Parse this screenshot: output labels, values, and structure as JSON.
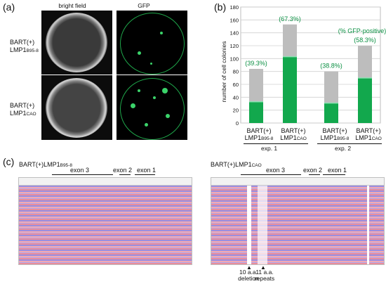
{
  "panel_a": {
    "label": "(a)",
    "columns": [
      "bright field",
      "GFP"
    ],
    "rows": [
      {
        "line1": "BART(+)",
        "line2_main": "LMP1",
        "line2_sub": "B95-8"
      },
      {
        "line1": "BART(+)",
        "line2_main": "LMP1",
        "line2_sub": "CAO"
      }
    ]
  },
  "panel_b": {
    "label": "(b)",
    "legend": "(% GFP-positive)",
    "colors": {
      "total": "#bdbdbd",
      "gfp": "#12a84d",
      "text": "#0a8f42"
    }
  },
  "chart_data": {
    "type": "bar",
    "ylabel": "number of cell colonies",
    "ylim": [
      0,
      180
    ],
    "yticks": [
      0,
      20,
      40,
      60,
      80,
      100,
      120,
      140,
      160,
      180
    ],
    "categories": [
      {
        "line1": "BART(+)",
        "main": "LMP1",
        "sub": "B95-8"
      },
      {
        "line1": "BART(+)",
        "main": "LMP1",
        "sub": "CAO"
      },
      {
        "line1": "BART(+)",
        "main": "LMP1",
        "sub": "B95-8"
      },
      {
        "line1": "BART(+)",
        "main": "LMP1",
        "sub": "CAO"
      }
    ],
    "groups": [
      "exp. 1",
      "exp. 2"
    ],
    "series": [
      {
        "name": "total",
        "values": [
          84,
          153,
          80,
          120
        ]
      },
      {
        "name": "GFP-positive",
        "values": [
          33,
          103,
          31,
          70
        ]
      }
    ],
    "percent_labels": [
      "(39.3%)",
      "(67.3%)",
      "(38.8%)",
      "(58.3%)"
    ]
  },
  "panel_c": {
    "label": "(c)",
    "left": {
      "title_main": "BART(+)LMP1",
      "title_sub": "B95-8",
      "exons": [
        "exon 3",
        "exon 2",
        "exon 1"
      ]
    },
    "right": {
      "title_main": "BART(+)LMP1",
      "title_sub": "CAO",
      "exons": [
        "exon 3",
        "exon 2",
        "exon 1"
      ],
      "annotations": [
        {
          "line1": "10 a.a.",
          "line2": "deletion"
        },
        {
          "line1": "11 a.a.",
          "line2": "repeats"
        }
      ]
    }
  }
}
